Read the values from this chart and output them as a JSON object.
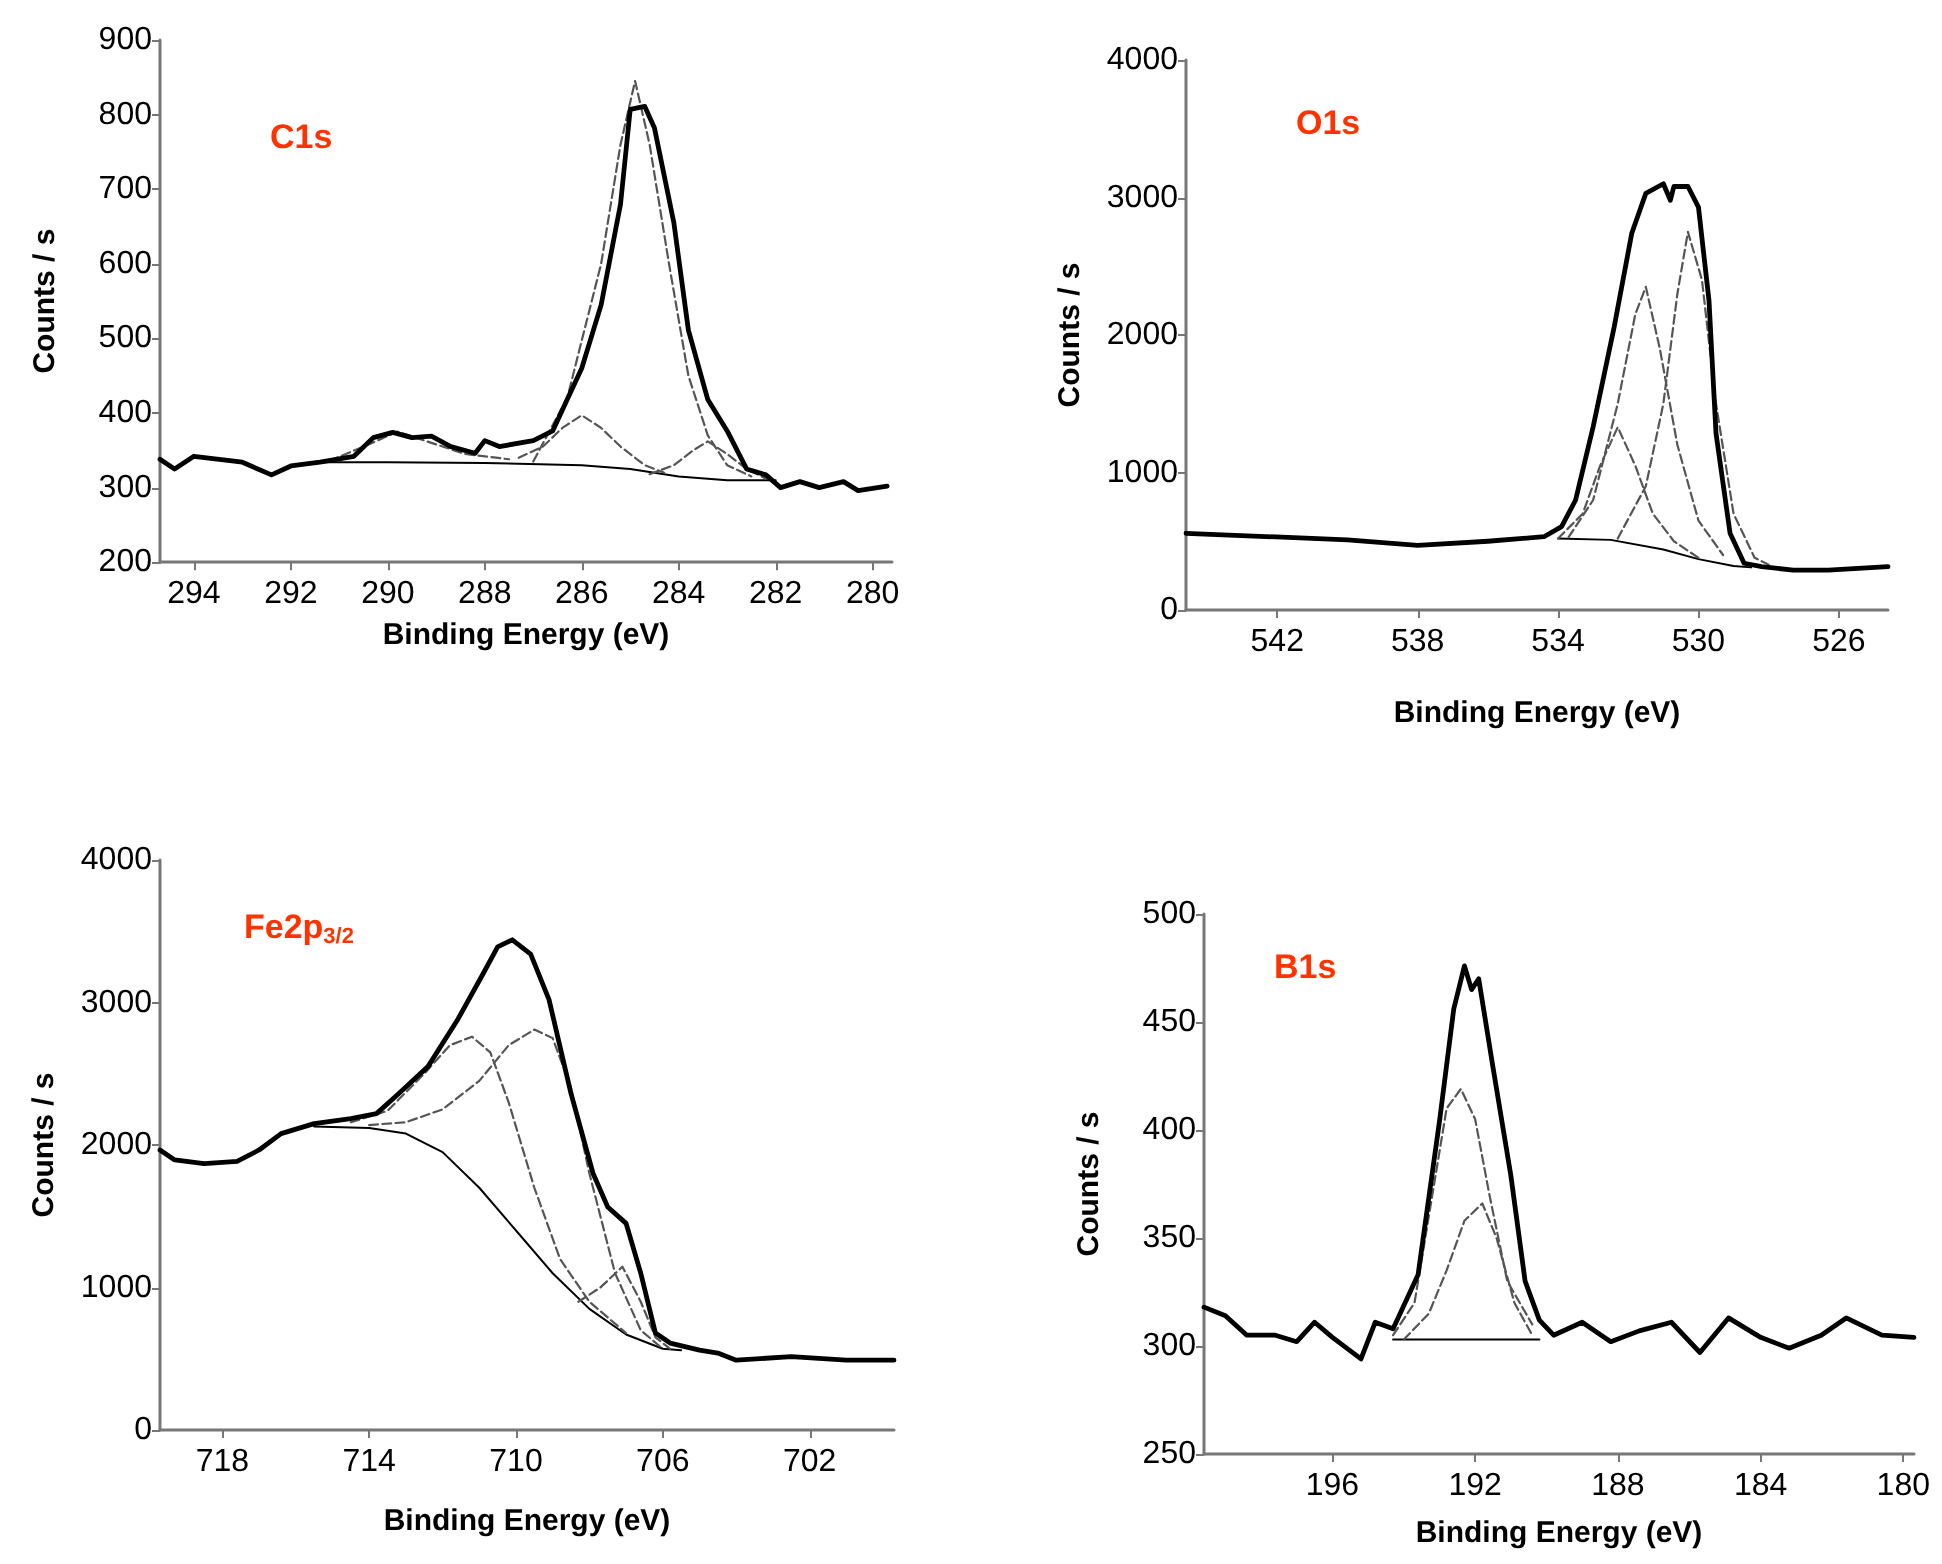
{
  "chart_data": [
    {
      "type": "line",
      "title": "C1s",
      "xlabel": "Binding Energy (eV)",
      "ylabel": "Counts / s",
      "xlim": [
        294.7,
        279.6
      ],
      "xticks": [
        294,
        292,
        290,
        288,
        286,
        284,
        282,
        280
      ],
      "ylim": [
        200,
        900
      ],
      "yticks": [
        200,
        300,
        400,
        500,
        600,
        700,
        800,
        900
      ],
      "marker": "none",
      "series": [
        {
          "color": "#000000",
          "line_style": "solid",
          "x": [
            294.7,
            294.4,
            294,
            293,
            292.4,
            292,
            291.4,
            290.7,
            290.3,
            289.9,
            289.5,
            289.1,
            288.7,
            288.2,
            288,
            287.7,
            287,
            286.6,
            286.3,
            286,
            285.6,
            285.2,
            285,
            284.7,
            284.5,
            284.1,
            283.8,
            283.4,
            283,
            282.6,
            282.2,
            281.9,
            281.5,
            281.1,
            280.6,
            280.3,
            279.7
          ],
          "values": [
            338,
            325,
            342,
            334,
            317,
            329,
            334,
            342,
            367,
            374,
            367,
            369,
            355,
            346,
            363,
            355,
            363,
            376,
            418,
            460,
            545,
            680,
            807,
            811,
            782,
            655,
            511,
            418,
            376,
            325,
            317,
            300,
            308,
            300,
            308,
            296,
            302
          ]
        },
        {
          "color": "#000000",
          "line_style": "solid",
          "x": [
            291.5,
            290,
            288,
            286,
            285,
            284,
            283,
            282
          ],
          "values": [
            334,
            334,
            333,
            330,
            325,
            315,
            310,
            310
          ]
        },
        {
          "color": "#555555",
          "line_style": "dashed",
          "x": [
            287,
            286.3,
            285.6,
            285.2,
            284.9,
            284.6,
            284.2,
            283.8,
            283.4,
            283,
            282.5
          ],
          "values": [
            335,
            420,
            600,
            760,
            845,
            760,
            600,
            450,
            370,
            330,
            315
          ]
        },
        {
          "color": "#555555",
          "line_style": "dashed",
          "x": [
            287.3,
            286.8,
            286.4,
            286,
            285.6,
            285.2,
            284.7,
            284.3
          ],
          "values": [
            340,
            355,
            380,
            397,
            380,
            355,
            330,
            320
          ]
        },
        {
          "color": "#555555",
          "line_style": "dashed",
          "x": [
            284.6,
            284.1,
            283.7,
            283.4,
            283,
            282.6,
            282.2
          ],
          "values": [
            318,
            330,
            350,
            362,
            345,
            325,
            312
          ]
        },
        {
          "color": "#555555",
          "line_style": "dashed",
          "x": [
            291.2,
            290.5,
            289.8,
            289.1,
            288.4,
            287.5
          ],
          "values": [
            336,
            355,
            375,
            360,
            345,
            338
          ]
        }
      ]
    },
    {
      "type": "line",
      "title": "O1s",
      "xlabel": "Binding Energy (eV)",
      "ylabel": "Counts / s",
      "xlim": [
        544.6,
        524.6
      ],
      "xticks": [
        542,
        538,
        534,
        530,
        526
      ],
      "ylim": [
        0,
        4000
      ],
      "yticks": [
        0,
        1000,
        2000,
        3000,
        4000
      ],
      "marker": "none",
      "series": [
        {
          "color": "#000000",
          "line_style": "solid",
          "x": [
            544.6,
            540,
            538,
            536,
            534.4,
            533.9,
            533.5,
            533,
            532.4,
            531.9,
            531.5,
            531,
            530.8,
            530.7,
            530.3,
            530,
            529.7,
            529.5,
            529.1,
            528.7,
            528.2,
            527.3,
            526.3,
            524.6
          ],
          "values": [
            558,
            510,
            470,
            500,
            533,
            606,
            800,
            1333,
            2060,
            2740,
            3030,
            3100,
            2980,
            3080,
            3080,
            2930,
            2250,
            1285,
            558,
            340,
            315,
            290,
            290,
            315
          ]
        },
        {
          "color": "#000000",
          "line_style": "solid",
          "x": [
            534,
            532.5,
            531,
            530,
            529,
            528.5
          ],
          "values": [
            520,
            510,
            440,
            370,
            320,
            310
          ]
        },
        {
          "color": "#555555",
          "line_style": "dashed",
          "x": [
            534,
            533.3,
            532.8,
            532.3,
            531.8,
            531.3,
            530.7,
            530
          ],
          "values": [
            520,
            700,
            1050,
            1330,
            1050,
            700,
            500,
            380
          ]
        },
        {
          "color": "#555555",
          "line_style": "dashed",
          "x": [
            533.7,
            533,
            532.3,
            531.8,
            531.5,
            531.1,
            530.6,
            530,
            529.3
          ],
          "values": [
            530,
            800,
            1500,
            2150,
            2350,
            1900,
            1200,
            650,
            400
          ]
        },
        {
          "color": "#555555",
          "line_style": "dashed",
          "x": [
            532.3,
            531.5,
            531,
            530.6,
            530.3,
            529.9,
            529.5,
            529,
            528.4,
            528
          ],
          "values": [
            520,
            900,
            1500,
            2300,
            2750,
            2400,
            1500,
            700,
            380,
            330
          ]
        }
      ]
    },
    {
      "type": "line",
      "title": "Fe2p$_{3/2}$",
      "xlabel": "Binding Energy (eV)",
      "ylabel": "Counts / s",
      "xlim": [
        719.7,
        699.7
      ],
      "xticks": [
        718,
        714,
        710,
        706,
        702
      ],
      "ylim": [
        0,
        4000
      ],
      "yticks": [
        0,
        1000,
        2000,
        3000,
        4000
      ],
      "marker": "none",
      "series": [
        {
          "color": "#000000",
          "line_style": "solid",
          "x": [
            719.7,
            719.3,
            718.5,
            717.6,
            717,
            716.4,
            715.5,
            714.5,
            713.8,
            713.2,
            712.4,
            711.6,
            710.9,
            710.5,
            710.1,
            709.6,
            709.1,
            708.5,
            707.9,
            707.5,
            707,
            706.6,
            706.2,
            705.8,
            705,
            704.5,
            704,
            702.5,
            701,
            699.7
          ],
          "values": [
            1965,
            1895,
            1870,
            1885,
            1965,
            2080,
            2150,
            2185,
            2220,
            2360,
            2550,
            2875,
            3200,
            3390,
            3440,
            3340,
            3020,
            2360,
            1800,
            1565,
            1450,
            1100,
            680,
            610,
            560,
            540,
            490,
            515,
            490,
            490
          ]
        },
        {
          "color": "#000000",
          "line_style": "solid",
          "x": [
            715.5,
            714,
            713,
            712,
            711,
            710,
            709,
            708,
            707,
            706,
            705.5
          ],
          "values": [
            2130,
            2120,
            2080,
            1950,
            1700,
            1400,
            1100,
            850,
            670,
            570,
            560
          ]
        },
        {
          "color": "#555555",
          "line_style": "dashed",
          "x": [
            714.5,
            713.5,
            712.5,
            711.8,
            711.2,
            710.7,
            710.2,
            709.5,
            708.8,
            708,
            707
          ],
          "values": [
            2160,
            2240,
            2500,
            2700,
            2760,
            2650,
            2300,
            1700,
            1200,
            900,
            680
          ]
        },
        {
          "color": "#555555",
          "line_style": "dashed",
          "x": [
            714,
            713,
            712,
            711,
            710.2,
            709.5,
            709,
            708.5,
            708,
            707.3,
            706.6,
            706
          ],
          "values": [
            2140,
            2160,
            2250,
            2450,
            2700,
            2810,
            2750,
            2400,
            1800,
            1100,
            700,
            570
          ]
        },
        {
          "color": "#555555",
          "line_style": "dashed",
          "x": [
            708.3,
            707.7,
            707.1,
            706.6,
            706.2,
            705.8
          ],
          "values": [
            900,
            1000,
            1146,
            900,
            650,
            570
          ]
        }
      ]
    },
    {
      "type": "line",
      "title": "B1s",
      "xlabel": "Binding Energy (eV)",
      "ylabel": "Counts / s",
      "xlim": [
        199.6,
        179.7
      ],
      "xticks": [
        196,
        192,
        188,
        184,
        180
      ],
      "ylim": [
        250,
        500
      ],
      "yticks": [
        250,
        300,
        350,
        400,
        450,
        500
      ],
      "marker": "none",
      "series": [
        {
          "color": "#000000",
          "line_style": "solid",
          "x": [
            199.6,
            199,
            198.4,
            197.6,
            197,
            196.5,
            196,
            195.2,
            194.8,
            194.3,
            193.6,
            193,
            192.6,
            192.3,
            192.1,
            191.9,
            191.5,
            191,
            190.6,
            190.2,
            189.8,
            189,
            188.2,
            187.4,
            186.5,
            185.7,
            184.9,
            184,
            183.2,
            182.3,
            181.6,
            180.6,
            179.7
          ],
          "values": [
            318,
            314,
            305,
            305,
            302,
            311,
            304,
            294,
            311,
            308,
            333,
            404,
            456,
            476,
            465,
            470,
            429,
            379,
            330,
            312,
            305,
            311,
            302,
            307,
            311,
            297,
            313,
            304,
            299,
            305,
            313,
            305,
            304
          ]
        },
        {
          "color": "#000000",
          "line_style": "solid",
          "x": [
            194.3,
            190.2
          ],
          "values": [
            303,
            303
          ]
        },
        {
          "color": "#555555",
          "line_style": "dashed",
          "x": [
            194.3,
            193.7,
            193.1,
            192.8,
            192.4,
            192,
            191.6,
            191.1,
            190.4
          ],
          "values": [
            305,
            320,
            380,
            410,
            419,
            405,
            370,
            330,
            310
          ]
        },
        {
          "color": "#555555",
          "line_style": "dashed",
          "x": [
            194,
            193.3,
            192.8,
            192.3,
            191.8,
            191.4,
            190.9,
            190.4
          ],
          "values": [
            303,
            315,
            335,
            358,
            366,
            350,
            320,
            305
          ]
        }
      ]
    }
  ]
}
